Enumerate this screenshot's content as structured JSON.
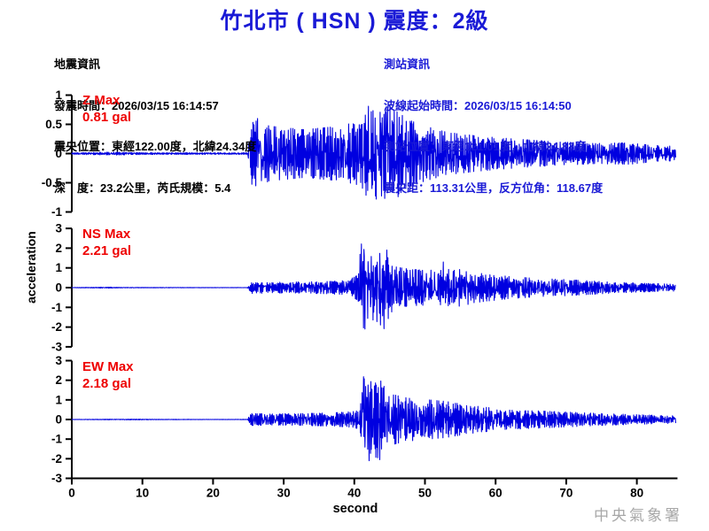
{
  "header": {
    "title": "竹北市 ( HSN )  震度：2級"
  },
  "quake_info": {
    "heading": "地震資訊",
    "lines": [
      "發震時間：2026/03/15 16:14:57",
      "震央位置：東經122.00度，北緯24.34度",
      "深　度：23.2公里，芮氏規模：5.4"
    ]
  },
  "station_info": {
    "heading": "測站資訊",
    "lines": [
      "波線起始時間：2026/03/15 16:14:50",
      "測站位置：東經121.01度，北緯24.83度",
      "震央距：113.31公里，反方位角：118.67度"
    ]
  },
  "watermark": "中央氣象署",
  "colors": {
    "accent_blue": "#1a1ad6",
    "trace_blue": "#0000e0",
    "label_red": "#ee0000",
    "watermark_gray": "#a8a8a8"
  },
  "chart_data": {
    "type": "line",
    "title": "竹北市 ( HSN )  震度：2級",
    "xlabel": "second",
    "ylabel": "acceleration",
    "x_range": [
      0,
      85.5
    ],
    "x_ticks": [
      0,
      10,
      20,
      30,
      40,
      50,
      60,
      70,
      80
    ],
    "grid": false,
    "legend": "none",
    "units": "gal",
    "channels": [
      {
        "id": "Z",
        "label": "Z Max",
        "max_text": "0.81 gal",
        "max_gal": 0.81,
        "ylim": [
          -1,
          1
        ],
        "yticks": [
          1,
          0.5,
          0,
          -0.5,
          -1
        ],
        "p_arrival_s": 25.1,
        "s_arrival_s": 41.0,
        "envelope": [
          [
            0,
            0.012
          ],
          [
            3,
            0.02
          ],
          [
            6,
            0.026
          ],
          [
            9,
            0.018
          ],
          [
            14,
            0.013
          ],
          [
            20,
            0.014
          ],
          [
            24.9,
            0.014
          ],
          [
            25.2,
            0.5
          ],
          [
            26.2,
            0.55
          ],
          [
            28,
            0.46
          ],
          [
            33,
            0.4
          ],
          [
            38,
            0.46
          ],
          [
            41,
            0.55
          ],
          [
            42,
            0.78
          ],
          [
            43.5,
            0.68
          ],
          [
            44.8,
            0.8
          ],
          [
            46,
            0.7
          ],
          [
            48,
            0.55
          ],
          [
            50,
            0.46
          ],
          [
            53,
            0.36
          ],
          [
            57,
            0.3
          ],
          [
            62,
            0.25
          ],
          [
            68,
            0.2
          ],
          [
            74,
            0.17
          ],
          [
            79,
            0.18
          ],
          [
            82,
            0.14
          ],
          [
            85.5,
            0.12
          ]
        ],
        "peaks": [
          [
            26.3,
            0.6
          ],
          [
            42.0,
            0.81
          ],
          [
            43.1,
            -0.78
          ],
          [
            44.7,
            0.79
          ],
          [
            46.2,
            -0.74
          ]
        ]
      },
      {
        "id": "NS",
        "label": "NS Max",
        "max_text": "2.21 gal",
        "max_gal": 2.21,
        "ylim": [
          -3,
          3
        ],
        "yticks": [
          3,
          2,
          1,
          0,
          -1,
          -2,
          -3
        ],
        "p_arrival_s": 25.3,
        "s_arrival_s": 41.0,
        "envelope": [
          [
            0,
            0.006
          ],
          [
            3.8,
            0.02
          ],
          [
            5.5,
            0.025
          ],
          [
            7,
            0.012
          ],
          [
            20,
            0.006
          ],
          [
            24.9,
            0.007
          ],
          [
            25.3,
            0.3
          ],
          [
            28,
            0.26
          ],
          [
            32,
            0.28
          ],
          [
            36,
            0.3
          ],
          [
            39,
            0.35
          ],
          [
            40.4,
            0.6
          ],
          [
            41,
            2.21
          ],
          [
            42.2,
            1.5
          ],
          [
            44.3,
            2.0
          ],
          [
            45.5,
            1.05
          ],
          [
            48,
            0.9
          ],
          [
            52,
            0.85
          ],
          [
            54.5,
            0.95
          ],
          [
            58,
            0.7
          ],
          [
            62,
            0.55
          ],
          [
            66,
            0.45
          ],
          [
            70,
            0.4
          ],
          [
            75,
            0.3
          ],
          [
            80,
            0.22
          ],
          [
            85.5,
            0.17
          ]
        ],
        "peaks": [
          [
            41.0,
            2.21
          ],
          [
            41.5,
            -2.1
          ],
          [
            44.2,
            -2.08
          ],
          [
            44.6,
            1.9
          ],
          [
            52.6,
            1.3
          ]
        ]
      },
      {
        "id": "EW",
        "label": "EW Max",
        "max_text": "2.18 gal",
        "max_gal": 2.18,
        "ylim": [
          -3,
          3
        ],
        "yticks": [
          3,
          2,
          1,
          0,
          -1,
          -2,
          -3
        ],
        "p_arrival_s": 25.3,
        "s_arrival_s": 41.3,
        "envelope": [
          [
            0,
            0.006
          ],
          [
            5.2,
            0.015
          ],
          [
            9.4,
            0.018
          ],
          [
            12,
            0.008
          ],
          [
            20,
            0.006
          ],
          [
            24.9,
            0.007
          ],
          [
            25.3,
            0.3
          ],
          [
            28,
            0.27
          ],
          [
            33,
            0.3
          ],
          [
            37,
            0.33
          ],
          [
            40,
            0.4
          ],
          [
            40.8,
            0.5
          ],
          [
            41.3,
            2.18
          ],
          [
            42.6,
            1.85
          ],
          [
            43.7,
            1.95
          ],
          [
            45,
            1.3
          ],
          [
            47,
            1.1
          ],
          [
            50,
            1.0
          ],
          [
            53,
            0.9
          ],
          [
            56,
            0.72
          ],
          [
            60,
            0.55
          ],
          [
            64,
            0.46
          ],
          [
            68,
            0.4
          ],
          [
            72,
            0.34
          ],
          [
            76,
            0.28
          ],
          [
            80,
            0.24
          ],
          [
            85.5,
            0.18
          ]
        ],
        "peaks": [
          [
            41.3,
            2.18
          ],
          [
            42.1,
            -2.1
          ],
          [
            43.6,
            -2.05
          ],
          [
            44.1,
            1.6
          ]
        ]
      }
    ]
  }
}
